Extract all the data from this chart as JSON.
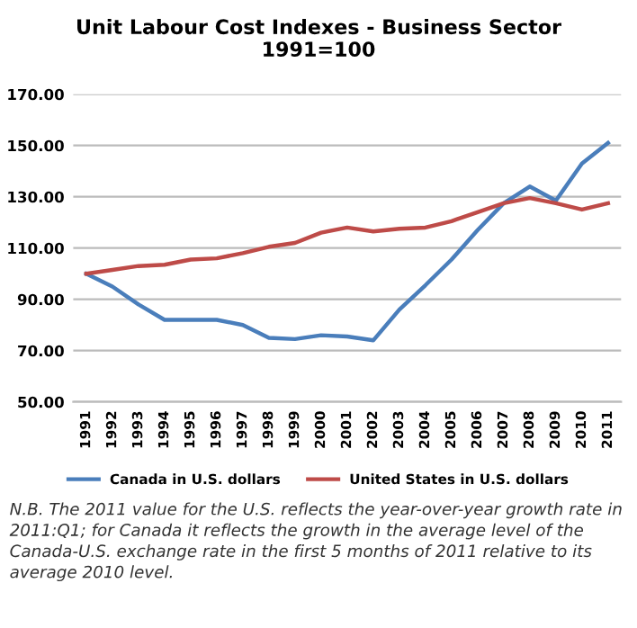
{
  "chart_data": {
    "type": "line",
    "title": "Unit Labour Cost Indexes - Business Sector\n1991=100",
    "categories": [
      "1991",
      "1992",
      "1993",
      "1994",
      "1995",
      "1996",
      "1997",
      "1998",
      "1999",
      "2000",
      "2001",
      "2002",
      "2003",
      "2004",
      "2005",
      "2006",
      "2007",
      "2008",
      "2009",
      "2010",
      "2011"
    ],
    "series": [
      {
        "name": "Canada in U.S. dollars",
        "color": "#4a7ebb",
        "values": [
          100,
          95,
          88,
          82,
          82,
          82,
          80,
          75,
          74.5,
          76,
          75.5,
          74,
          86,
          95.5,
          105.5,
          117,
          127.5,
          134,
          128.5,
          143,
          151
        ]
      },
      {
        "name": "United States in U.S. dollars",
        "color": "#be4b48",
        "values": [
          100,
          101.5,
          103,
          103.5,
          105.5,
          106,
          108,
          110.5,
          112,
          116,
          118,
          116.5,
          117.5,
          118,
          120.5,
          124,
          127.5,
          129.5,
          127.5,
          125,
          127.5
        ]
      }
    ],
    "ylim": [
      50,
      170
    ],
    "yticks": [
      {
        "value": 50,
        "label": "50.00"
      },
      {
        "value": 70,
        "label": "70.00"
      },
      {
        "value": 90,
        "label": "90.00"
      },
      {
        "value": 110,
        "label": "110.00"
      },
      {
        "value": 130,
        "label": "130.00"
      },
      {
        "value": 150,
        "label": "150.00"
      },
      {
        "value": 170,
        "label": "170.00"
      }
    ],
    "grid": "y",
    "legend": "bottom",
    "marker": "none",
    "line_style": "solid",
    "annotations": [
      "N.B. The 2011 value for the U.S. reflects the year-over-year growth rate in 2011:Q1; for Canada it reflects the growth in the average level of the Canada-U.S. exchange rate in the first 5 months of 2011 relative to its average 2010 level."
    ]
  }
}
